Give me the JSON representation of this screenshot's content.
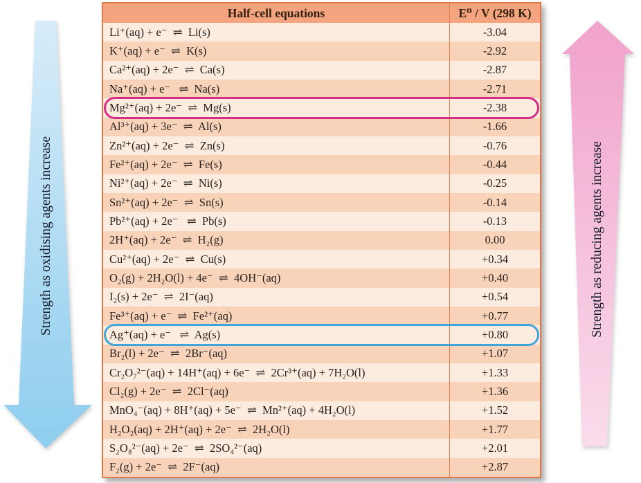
{
  "arrows": {
    "left_label": "Strength as oxidising agents increase",
    "right_label": "Strength as reducing agents increase"
  },
  "table": {
    "header": {
      "equations": "Half-cell equations",
      "potential": "E⁰ / V (298 K)"
    },
    "rows": [
      {
        "equation": "Li⁺(aq) + e⁻  ⇌  Li(s)",
        "potential": "-3.04",
        "highlight": null
      },
      {
        "equation": "K⁺(aq) + e⁻  ⇌  K(s)",
        "potential": "-2.92",
        "highlight": null
      },
      {
        "equation": "Ca²⁺(aq) + 2e⁻  ⇌  Ca(s)",
        "potential": "-2.87",
        "highlight": null
      },
      {
        "equation": "Na⁺(aq) + e⁻   ⇌  Na(s)",
        "potential": "-2.71",
        "highlight": null
      },
      {
        "equation": "Mg²⁺(aq) + 2e⁻  ⇌  Mg(s)",
        "potential": "-2.38",
        "highlight": "magenta"
      },
      {
        "equation": "Al³⁺(aq) + 3e⁻  ⇌  Al(s)",
        "potential": "-1.66",
        "highlight": null
      },
      {
        "equation": "Zn²⁺(aq) + 2e⁻  ⇌  Zn(s)",
        "potential": "-0.76",
        "highlight": null
      },
      {
        "equation": "Fe²⁺(aq) + 2e⁻  ⇌  Fe(s)",
        "potential": "-0.44",
        "highlight": null
      },
      {
        "equation": "Ni²⁺(aq) + 2e⁻  ⇌  Ni(s)",
        "potential": "-0.25",
        "highlight": null
      },
      {
        "equation": "Sn²⁺(aq) + 2e⁻  ⇌  Sn(s)",
        "potential": "-0.14",
        "highlight": null
      },
      {
        "equation": "Pb²⁺(aq) + 2e⁻   ⇌  Pb(s)",
        "potential": "-0.13",
        "highlight": null
      },
      {
        "equation": "2H⁺(aq) + 2e⁻  ⇌  H₂(g)",
        "potential": "0.00",
        "highlight": null
      },
      {
        "equation": "Cu²⁺(aq) + 2e⁻  ⇌  Cu(s)",
        "potential": "+0.34",
        "highlight": null
      },
      {
        "equation": "O₂(g) + 2H₂O(l) + 4e⁻  ⇌  4OH⁻(aq)",
        "potential": "+0.40",
        "highlight": null
      },
      {
        "equation": "I₂(s) + 2e⁻  ⇌  2I⁻(aq)",
        "potential": "+0.54",
        "highlight": null
      },
      {
        "equation": "Fe³⁺(aq) + e⁻  ⇌  Fe²⁺(aq)",
        "potential": "+0.77",
        "highlight": null
      },
      {
        "equation": "Ag⁺(aq) + e⁻   ⇌  Ag(s)",
        "potential": "+0.80",
        "highlight": "blue"
      },
      {
        "equation": "Br₂(l) + 2e⁻  ⇌  2Br⁻(aq)",
        "potential": "+1.07",
        "highlight": null
      },
      {
        "equation": "Cr₂O₇²⁻(aq) + 14H⁺(aq) + 6e⁻  ⇌  2Cr³⁺(aq) + 7H₂O(l)",
        "potential": "+1.33",
        "highlight": null
      },
      {
        "equation": "Cl₂(g) + 2e⁻  ⇌  2Cl⁻(aq)",
        "potential": "+1.36",
        "highlight": null
      },
      {
        "equation": "MnO₄⁻(aq) + 8H⁺(aq) + 5e⁻  ⇌  Mn²⁺(aq) + 4H₂O(l)",
        "potential": "+1.52",
        "highlight": null
      },
      {
        "equation": "H₂O₂(aq) + 2H⁺(aq) + 2e⁻  ⇌  2H₂O(l)",
        "potential": "+1.77",
        "highlight": null
      },
      {
        "equation": "S₂O₈²⁻(aq) + 2e⁻  ⇌  2SO₄²⁻(aq)",
        "potential": "+2.01",
        "highlight": null
      },
      {
        "equation": "F₂(g) + 2e⁻  ⇌  2F⁻(aq)",
        "potential": "+2.87",
        "highlight": null
      }
    ]
  },
  "colors": {
    "header_bg": "#f4a47f",
    "header_text": "#33200f",
    "text": "#241f1b",
    "row_light": "#fcebdf",
    "row_dark": "#f9d2ba",
    "table_border": "#e0794a",
    "column_divider": "#dd8049",
    "highlight_magenta": "#d62d87",
    "highlight_blue": "#41a5d9",
    "arrow_blue_top": "#d7ecf9",
    "arrow_blue_bottom": "#8ecdee",
    "arrow_pink_top": "#f1a2cb",
    "arrow_pink_bottom": "#f9dceb",
    "arrow_label_text": "#161e2c"
  }
}
